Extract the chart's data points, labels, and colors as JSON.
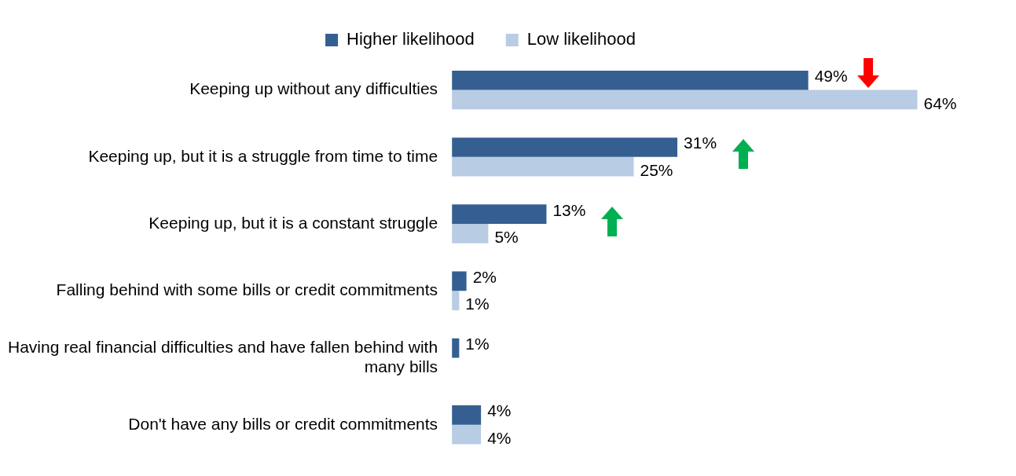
{
  "chart_data": {
    "type": "bar",
    "orientation": "horizontal",
    "categories": [
      "Keeping up without any difficulties",
      "Keeping up, but it is a struggle from time to time",
      "Keeping up, but it is a constant struggle",
      "Falling behind with some bills or credit commitments",
      "Having real financial difficulties and have fallen behind with many bills",
      "Don't have any bills or credit commitments"
    ],
    "series": [
      {
        "name": "Higher likelihood",
        "color": "#355f91",
        "values": [
          49,
          31,
          13,
          2,
          1,
          4
        ],
        "value_labels": [
          "49%",
          "31%",
          "13%",
          "2%",
          "1%",
          "4%"
        ]
      },
      {
        "name": "Low likelihood",
        "color": "#b8cce4",
        "values": [
          64,
          25,
          5,
          1,
          null,
          4
        ],
        "value_labels": [
          "64%",
          "25%",
          "5%",
          "1%",
          null,
          "4%"
        ]
      }
    ],
    "legend": "top",
    "tick_labels": "y"
  }
}
